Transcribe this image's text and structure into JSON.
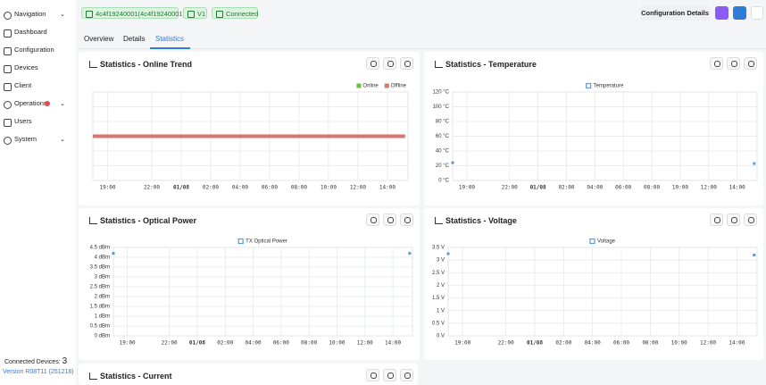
{
  "sidebar": {
    "items": [
      "Navigation",
      "Dashboard",
      "Configuration",
      "Devices",
      "Client",
      "Operations",
      "Users",
      "System"
    ],
    "connected_label": "Connected Devices:",
    "connected_count": 3,
    "version": "Version R08T11 (251218)"
  },
  "header": {
    "device": "4c4f19240001(4c4f19240001)",
    "firmware": "V1",
    "status": "Connected",
    "config_button": "Configuration Details"
  },
  "tabs": [
    "Overview",
    "Details",
    "Statistics"
  ],
  "current_panel": {
    "title": "Statistics - Current"
  },
  "chart_data": [
    {
      "type": "line",
      "title": "Statistics - Online Trend",
      "x": [
        18,
        39.2
      ],
      "xlim": [
        18,
        39.4
      ],
      "xticks": [
        {
          "value": 19,
          "label": "19:00"
        },
        {
          "value": 22,
          "label": "22:00"
        },
        {
          "value": 24,
          "label": "01/08"
        },
        {
          "value": 26,
          "label": "02:00"
        },
        {
          "value": 28,
          "label": "04:00"
        },
        {
          "value": 30,
          "label": "06:00"
        },
        {
          "value": 32,
          "label": "08:00"
        },
        {
          "value": 34,
          "label": "10:00"
        },
        {
          "value": 36,
          "label": "12:00"
        },
        {
          "value": 38,
          "label": "14:00"
        }
      ],
      "ylim": [
        0,
        2
      ],
      "series": [
        {
          "name": "Online",
          "color": "#67c23a",
          "values": [
            1,
            1
          ]
        },
        {
          "name": "Offline",
          "color": "#d9756c",
          "values": [
            1,
            1
          ]
        }
      ],
      "legend": "top-right",
      "grid": true
    },
    {
      "type": "line",
      "title": "Statistics - Temperature",
      "x": [
        18,
        28.7,
        39.2
      ],
      "xlim": [
        18,
        39.4
      ],
      "xticks": [
        {
          "value": 19,
          "label": "19:00"
        },
        {
          "value": 22,
          "label": "22:00"
        },
        {
          "value": 24,
          "label": "01/08"
        },
        {
          "value": 26,
          "label": "02:00"
        },
        {
          "value": 28,
          "label": "04:00"
        },
        {
          "value": 30,
          "label": "06:00"
        },
        {
          "value": 32,
          "label": "08:00"
        },
        {
          "value": 34,
          "label": "10:00"
        },
        {
          "value": 36,
          "label": "12:00"
        },
        {
          "value": 38,
          "label": "14:00"
        }
      ],
      "ylim": [
        0,
        120
      ],
      "yticks": [
        {
          "value": 0,
          "label": "0 °C"
        },
        {
          "value": 20,
          "label": "20 °C"
        },
        {
          "value": 40,
          "label": "40 °C"
        },
        {
          "value": 60,
          "label": "60 °C"
        },
        {
          "value": 80,
          "label": "80 °C"
        },
        {
          "value": 100,
          "label": "100 °C"
        },
        {
          "value": 120,
          "label": "120 °C"
        }
      ],
      "series": [
        {
          "name": "Temperature",
          "color": "#5b9bd5",
          "values": [
            24,
            null,
            23
          ]
        }
      ],
      "legend": "top",
      "grid": true
    },
    {
      "type": "line",
      "title": "Statistics - Optical Power",
      "x": [
        18,
        28.7,
        39.2
      ],
      "xlim": [
        18,
        39.4
      ],
      "xticks": [
        {
          "value": 19,
          "label": "19:00"
        },
        {
          "value": 22,
          "label": "22:00"
        },
        {
          "value": 24,
          "label": "01/08"
        },
        {
          "value": 26,
          "label": "02:00"
        },
        {
          "value": 28,
          "label": "04:00"
        },
        {
          "value": 30,
          "label": "06:00"
        },
        {
          "value": 32,
          "label": "08:00"
        },
        {
          "value": 34,
          "label": "10:00"
        },
        {
          "value": 36,
          "label": "12:00"
        },
        {
          "value": 38,
          "label": "14:00"
        }
      ],
      "ylim": [
        0,
        4.5
      ],
      "yticks": [
        {
          "value": 0,
          "label": "0 dBm"
        },
        {
          "value": 0.5,
          "label": "0.5 dBm"
        },
        {
          "value": 1,
          "label": "1 dBm"
        },
        {
          "value": 1.5,
          "label": "1.5 dBm"
        },
        {
          "value": 2,
          "label": "2 dBm"
        },
        {
          "value": 2.5,
          "label": "2.5 dBm"
        },
        {
          "value": 3,
          "label": "3 dBm"
        },
        {
          "value": 3.5,
          "label": "3.5 dBm"
        },
        {
          "value": 4,
          "label": "4 dBm"
        },
        {
          "value": 4.5,
          "label": "4.5 dBm"
        }
      ],
      "series": [
        {
          "name": "TX Optical Power",
          "color": "#5b9bd5",
          "values": [
            4.2,
            null,
            4.2
          ]
        }
      ],
      "legend": "top",
      "grid": true
    },
    {
      "type": "line",
      "title": "Statistics - Voltage",
      "x": [
        18,
        28.7,
        39.2
      ],
      "xlim": [
        18,
        39.4
      ],
      "xticks": [
        {
          "value": 19,
          "label": "19:00"
        },
        {
          "value": 22,
          "label": "22:00"
        },
        {
          "value": 24,
          "label": "01/08"
        },
        {
          "value": 26,
          "label": "02:00"
        },
        {
          "value": 28,
          "label": "04:00"
        },
        {
          "value": 30,
          "label": "06:00"
        },
        {
          "value": 32,
          "label": "08:00"
        },
        {
          "value": 34,
          "label": "10:00"
        },
        {
          "value": 36,
          "label": "12:00"
        },
        {
          "value": 38,
          "label": "14:00"
        }
      ],
      "ylim": [
        0,
        3.5
      ],
      "yticks": [
        {
          "value": 0,
          "label": "0 V"
        },
        {
          "value": 0.5,
          "label": "0.5 V"
        },
        {
          "value": 1,
          "label": "1 V"
        },
        {
          "value": 1.5,
          "label": "1.5 V"
        },
        {
          "value": 2,
          "label": "2 V"
        },
        {
          "value": 2.5,
          "label": "2.5 V"
        },
        {
          "value": 3,
          "label": "3 V"
        },
        {
          "value": 3.5,
          "label": "3.5 V"
        }
      ],
      "series": [
        {
          "name": "Voltage",
          "color": "#5b9bd5",
          "values": [
            3.25,
            null,
            3.2
          ]
        }
      ],
      "legend": "top",
      "grid": true
    }
  ]
}
